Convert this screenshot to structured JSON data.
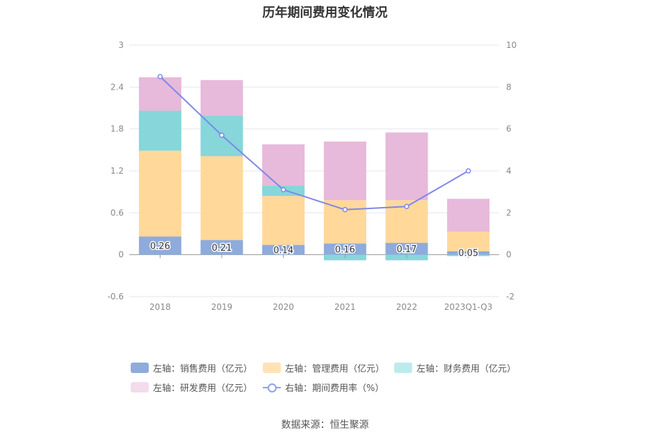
{
  "title": "历年期间费用变化情况",
  "source": "数据来源：恒生聚源",
  "colors": {
    "sales": "#8eabdc",
    "admin": "#ffd89a",
    "finance": "#86d6da",
    "rnd": "#e7b9da",
    "rate": "#7f86ea",
    "legend_finance": "#bdebed",
    "legend_rnd": "#f3dcec"
  },
  "legend": [
    {
      "label": "左轴：销售费用（亿元）"
    },
    {
      "label": "左轴：管理费用（亿元）"
    },
    {
      "label": "左轴：财务费用（亿元）"
    },
    {
      "label": "左轴：研发费用（亿元）"
    },
    {
      "label": "右轴：期间费用率（%）"
    }
  ],
  "chart_data": {
    "type": "bar",
    "stacked": true,
    "categories": [
      "2018",
      "2019",
      "2020",
      "2021",
      "2022",
      "2023Q1-Q3"
    ],
    "series": [
      {
        "name": "左轴：销售费用（亿元）",
        "axis": "left",
        "values": [
          0.26,
          0.21,
          0.14,
          0.16,
          0.17,
          0.05
        ],
        "data_labels": [
          "0.26",
          "0.21",
          "0.14",
          "0.16",
          "0.17",
          "0.05"
        ]
      },
      {
        "name": "左轴：管理费用（亿元）",
        "axis": "left",
        "values": [
          1.23,
          1.2,
          0.7,
          0.62,
          0.61,
          0.28
        ]
      },
      {
        "name": "左轴：财务费用（亿元）",
        "axis": "left",
        "values": [
          0.57,
          0.58,
          0.15,
          -0.08,
          -0.08,
          -0.02
        ]
      },
      {
        "name": "左轴：研发费用（亿元）",
        "axis": "left",
        "values": [
          0.48,
          0.51,
          0.59,
          0.84,
          0.97,
          0.47
        ]
      },
      {
        "name": "右轴：期间费用率（%）",
        "axis": "right",
        "type": "line",
        "values": [
          8.5,
          5.7,
          3.1,
          2.15,
          2.3,
          4.0
        ]
      }
    ],
    "left_axis": {
      "min": -0.6,
      "max": 3,
      "ticks": [
        "-0.6",
        "0",
        "0.6",
        "1.2",
        "1.8",
        "2.4",
        "3"
      ]
    },
    "right_axis": {
      "min": -2,
      "max": 10,
      "ticks": [
        "-2",
        "0",
        "2",
        "4",
        "6",
        "8",
        "10"
      ]
    },
    "grid": true,
    "legend_position": "bottom"
  }
}
